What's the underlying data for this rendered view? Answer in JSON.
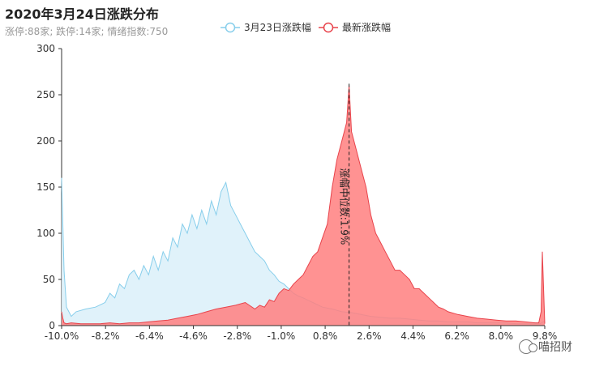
{
  "chart_data": {
    "type": "area",
    "title": "2020年3月24日涨跌分布",
    "subtitle": "涨停:88家; 跌停:14家; 情绪指数:750",
    "xlabel": "",
    "ylabel": "",
    "xlim": [
      -10.0,
      10.0
    ],
    "ylim": [
      0,
      300
    ],
    "yticks": [
      0,
      50,
      100,
      150,
      200,
      250,
      300
    ],
    "xtick_labels": [
      "-10.0%",
      "-8.2%",
      "-6.4%",
      "-4.6%",
      "-2.8%",
      "-1.0%",
      "0.8%",
      "2.6%",
      "4.4%",
      "6.2%",
      "8.0%",
      "9.8%"
    ],
    "legend": "top-center",
    "series": [
      {
        "name": "3月23日涨跌幅",
        "color": "#87CEEB",
        "fill": "#DDF1FA",
        "x": [
          -10.0,
          -9.9,
          -9.8,
          -9.6,
          -9.4,
          -9.0,
          -8.6,
          -8.2,
          -8.0,
          -7.8,
          -7.6,
          -7.4,
          -7.2,
          -7.0,
          -6.8,
          -6.6,
          -6.4,
          -6.2,
          -6.0,
          -5.8,
          -5.6,
          -5.4,
          -5.2,
          -5.0,
          -4.8,
          -4.6,
          -4.4,
          -4.2,
          -4.0,
          -3.8,
          -3.6,
          -3.4,
          -3.2,
          -3.0,
          -2.8,
          -2.6,
          -2.4,
          -2.2,
          -2.0,
          -1.8,
          -1.6,
          -1.4,
          -1.2,
          -1.0,
          -0.8,
          -0.6,
          -0.4,
          -0.2,
          0.0,
          0.4,
          0.8,
          1.2,
          1.6,
          2.0,
          2.4,
          2.8,
          3.2,
          3.6,
          4.0,
          4.4,
          4.8,
          5.2,
          5.6,
          6.0,
          6.4,
          6.8,
          7.2,
          7.6,
          8.0,
          8.4,
          8.8,
          9.2,
          9.6,
          9.8,
          10.0
        ],
        "values": [
          160,
          60,
          20,
          10,
          15,
          18,
          20,
          25,
          35,
          30,
          45,
          40,
          55,
          60,
          50,
          65,
          55,
          75,
          60,
          80,
          70,
          95,
          85,
          110,
          100,
          120,
          105,
          125,
          110,
          135,
          120,
          145,
          155,
          130,
          120,
          110,
          100,
          90,
          80,
          75,
          70,
          60,
          55,
          48,
          45,
          40,
          35,
          32,
          30,
          25,
          20,
          18,
          15,
          14,
          12,
          10,
          9,
          8,
          8,
          7,
          6,
          5,
          5,
          4,
          4,
          4,
          3,
          3,
          3,
          3,
          2,
          2,
          2,
          2,
          5
        ]
      },
      {
        "name": "最新涨跌幅",
        "color": "#E8434B",
        "fill": "#FF7F7F",
        "x": [
          -10.0,
          -9.95,
          -9.9,
          -9.8,
          -9.6,
          -9.2,
          -8.8,
          -8.4,
          -8.0,
          -7.6,
          -7.2,
          -6.8,
          -6.4,
          -6.0,
          -5.6,
          -5.2,
          -4.8,
          -4.4,
          -4.0,
          -3.6,
          -3.2,
          -2.8,
          -2.4,
          -2.0,
          -1.8,
          -1.6,
          -1.4,
          -1.2,
          -1.0,
          -0.8,
          -0.6,
          -0.4,
          -0.2,
          0.0,
          0.2,
          0.4,
          0.6,
          0.8,
          1.0,
          1.2,
          1.4,
          1.6,
          1.8,
          1.9,
          2.0,
          2.2,
          2.4,
          2.6,
          2.8,
          3.0,
          3.2,
          3.4,
          3.6,
          3.8,
          4.0,
          4.2,
          4.4,
          4.6,
          4.8,
          5.0,
          5.2,
          5.4,
          5.6,
          5.8,
          6.0,
          6.4,
          6.8,
          7.2,
          7.6,
          8.0,
          8.4,
          8.8,
          9.2,
          9.6,
          9.75,
          9.85,
          9.9,
          10.0
        ],
        "values": [
          15,
          8,
          3,
          2,
          3,
          2,
          2,
          2,
          3,
          2,
          3,
          3,
          4,
          5,
          6,
          8,
          10,
          12,
          15,
          18,
          20,
          22,
          25,
          18,
          22,
          20,
          28,
          26,
          35,
          40,
          38,
          45,
          50,
          55,
          65,
          75,
          80,
          95,
          110,
          150,
          180,
          200,
          220,
          260,
          210,
          190,
          170,
          150,
          120,
          100,
          90,
          80,
          70,
          60,
          60,
          55,
          50,
          40,
          40,
          35,
          30,
          25,
          20,
          18,
          15,
          12,
          10,
          8,
          7,
          6,
          5,
          5,
          4,
          3,
          3,
          15,
          80,
          2
        ]
      }
    ],
    "annotations": [
      {
        "type": "vline",
        "x": 1.9,
        "text": "涨幅中位数:1.9%"
      }
    ]
  },
  "watermark": "喵招财"
}
